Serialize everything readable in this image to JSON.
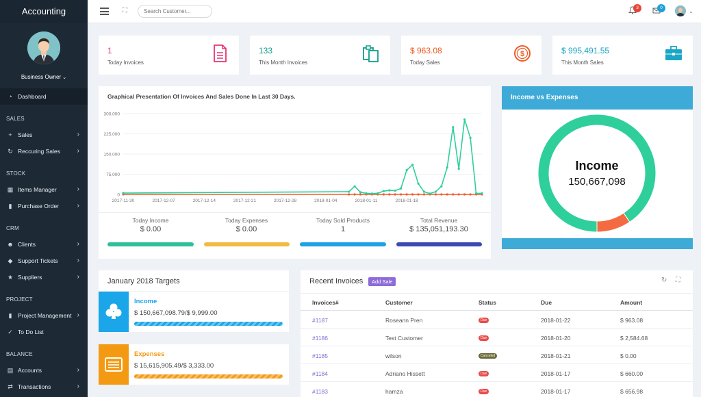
{
  "app": {
    "title": "Accounting"
  },
  "user": {
    "role": "Business Owner"
  },
  "sidebar": {
    "dashboard": "Dashboard",
    "sections": {
      "sales": "SALES",
      "stock": "STOCK",
      "crm": "CRM",
      "project": "PROJECT",
      "balance": "BALANCE"
    },
    "items": {
      "sales": "Sales",
      "recurring_sales": "Reccuring Sales",
      "items_manager": "Items Manager",
      "purchase_order": "Purchase Order",
      "clients": "Clients",
      "support_tickets": "Support Tickets",
      "suppliers": "Suppliers",
      "project_management": "Project Management",
      "todo": "To Do List",
      "accounts": "Accounts",
      "transactions": "Transactions"
    }
  },
  "topbar": {
    "search_placeholder": "Search Customer...",
    "notifications_count": "3",
    "messages_count": "0"
  },
  "stats": [
    {
      "value": "1",
      "label": "Today Invoices",
      "color": "#e8336d",
      "icon": "invoice-icon"
    },
    {
      "value": "133",
      "label": "This Month Invoices",
      "color": "#0f9f8a",
      "icon": "clipboard-icon"
    },
    {
      "value": "$ 963.08",
      "label": "Today Sales",
      "color": "#f15a24",
      "icon": "dollar-coin-icon"
    },
    {
      "value": "$ 995,491.55",
      "label": "This Month Sales",
      "color": "#1aa6c7",
      "icon": "briefcase-icon"
    }
  ],
  "chart_card": {
    "title": "Graphical Presentation Of Invoices And Sales Done In Last 30 Days.",
    "footer": [
      {
        "label": "Today Income",
        "value": "$ 0.00",
        "color": "#2fbf9b"
      },
      {
        "label": "Today Expenses",
        "value": "$ 0.00",
        "color": "#f4b942"
      },
      {
        "label": "Today Sold Products",
        "value": "1",
        "color": "#1da1e8"
      },
      {
        "label": "Total Revenue",
        "value": "$ 135,051,193.30",
        "color": "#3b4ab0"
      }
    ]
  },
  "chart_data": [
    {
      "type": "line",
      "title": "",
      "xlabel": "",
      "ylabel": "",
      "ylim": [
        0,
        300000
      ],
      "yticks": [
        "0",
        "75,000",
        "150,000",
        "225,000",
        "300,000"
      ],
      "xticks": [
        "2017-11-30",
        "2017-12-07",
        "2017-12-14",
        "2017-12-21",
        "2017-12-28",
        "2018-01-04",
        "2018-01-11",
        "2018-01-18"
      ],
      "grid": true,
      "x": [
        0,
        39,
        40,
        41,
        42,
        43,
        44,
        45,
        46,
        47,
        48,
        49,
        50,
        51,
        52,
        53,
        54,
        55,
        56,
        57,
        58,
        59,
        60,
        61,
        62
      ],
      "series": [
        {
          "color": "#2fcf9b",
          "values": [
            5000,
            10000,
            30000,
            8000,
            4000,
            3000,
            4000,
            12000,
            15000,
            14000,
            22000,
            90000,
            110000,
            40000,
            10000,
            3000,
            10000,
            30000,
            100000,
            250000,
            95000,
            278000,
            210000,
            4000,
            4000
          ]
        },
        {
          "color": "#f25c2b",
          "values": [
            0,
            0,
            0,
            0,
            0,
            0,
            0,
            0,
            0,
            0,
            0,
            0,
            0,
            0,
            0,
            0,
            0,
            0,
            0,
            0,
            0,
            0,
            0,
            0,
            0
          ]
        }
      ]
    },
    {
      "type": "pie",
      "title": "Income vs Expenses",
      "center_label": "Income",
      "center_value": "150,667,098",
      "slices": [
        {
          "label": "Income",
          "value": 150667098,
          "color": "#2fcf9b"
        },
        {
          "label": "Expenses",
          "value": 15615905,
          "color": "#f46b41"
        }
      ]
    }
  ],
  "targets": {
    "title": "January 2018 Targets",
    "items": [
      {
        "name": "Income",
        "text": "$ 150,667,098.79/$ 9,999.00",
        "color": "#1aa6e8",
        "progress": 1.0,
        "icon": "club-icon"
      },
      {
        "name": "Expenses",
        "text": "$ 15,615,905.49/$ 3,333.00",
        "color": "#f39a12",
        "progress": 1.0,
        "icon": "list-card-icon"
      }
    ]
  },
  "invoices": {
    "title": "Recent Invoices",
    "add_label": "Add Sale",
    "columns": [
      "Invoices#",
      "Customer",
      "Status",
      "Due",
      "Amount"
    ],
    "rows": [
      {
        "id": "#1187",
        "customer": "Roseann Pren",
        "status": "Due",
        "status_color": "#e84b4b",
        "due": "2018-01-22",
        "amount": "$ 963.08"
      },
      {
        "id": "#1186",
        "customer": "Test Customer",
        "status": "Due",
        "status_color": "#e84b4b",
        "due": "2018-01-20",
        "amount": "$ 2,584.68"
      },
      {
        "id": "#1185",
        "customer": "wilson",
        "status": "Canceled",
        "status_color": "#6b6b3a",
        "due": "2018-01-21",
        "amount": "$ 0.00"
      },
      {
        "id": "#1184",
        "customer": "Adriano Hissett",
        "status": "Due",
        "status_color": "#e84b4b",
        "due": "2018-01-17",
        "amount": "$ 660.00"
      },
      {
        "id": "#1183",
        "customer": "hamza",
        "status": "Due",
        "status_color": "#e84b4b",
        "due": "2018-01-17",
        "amount": "$ 656.98"
      }
    ]
  }
}
